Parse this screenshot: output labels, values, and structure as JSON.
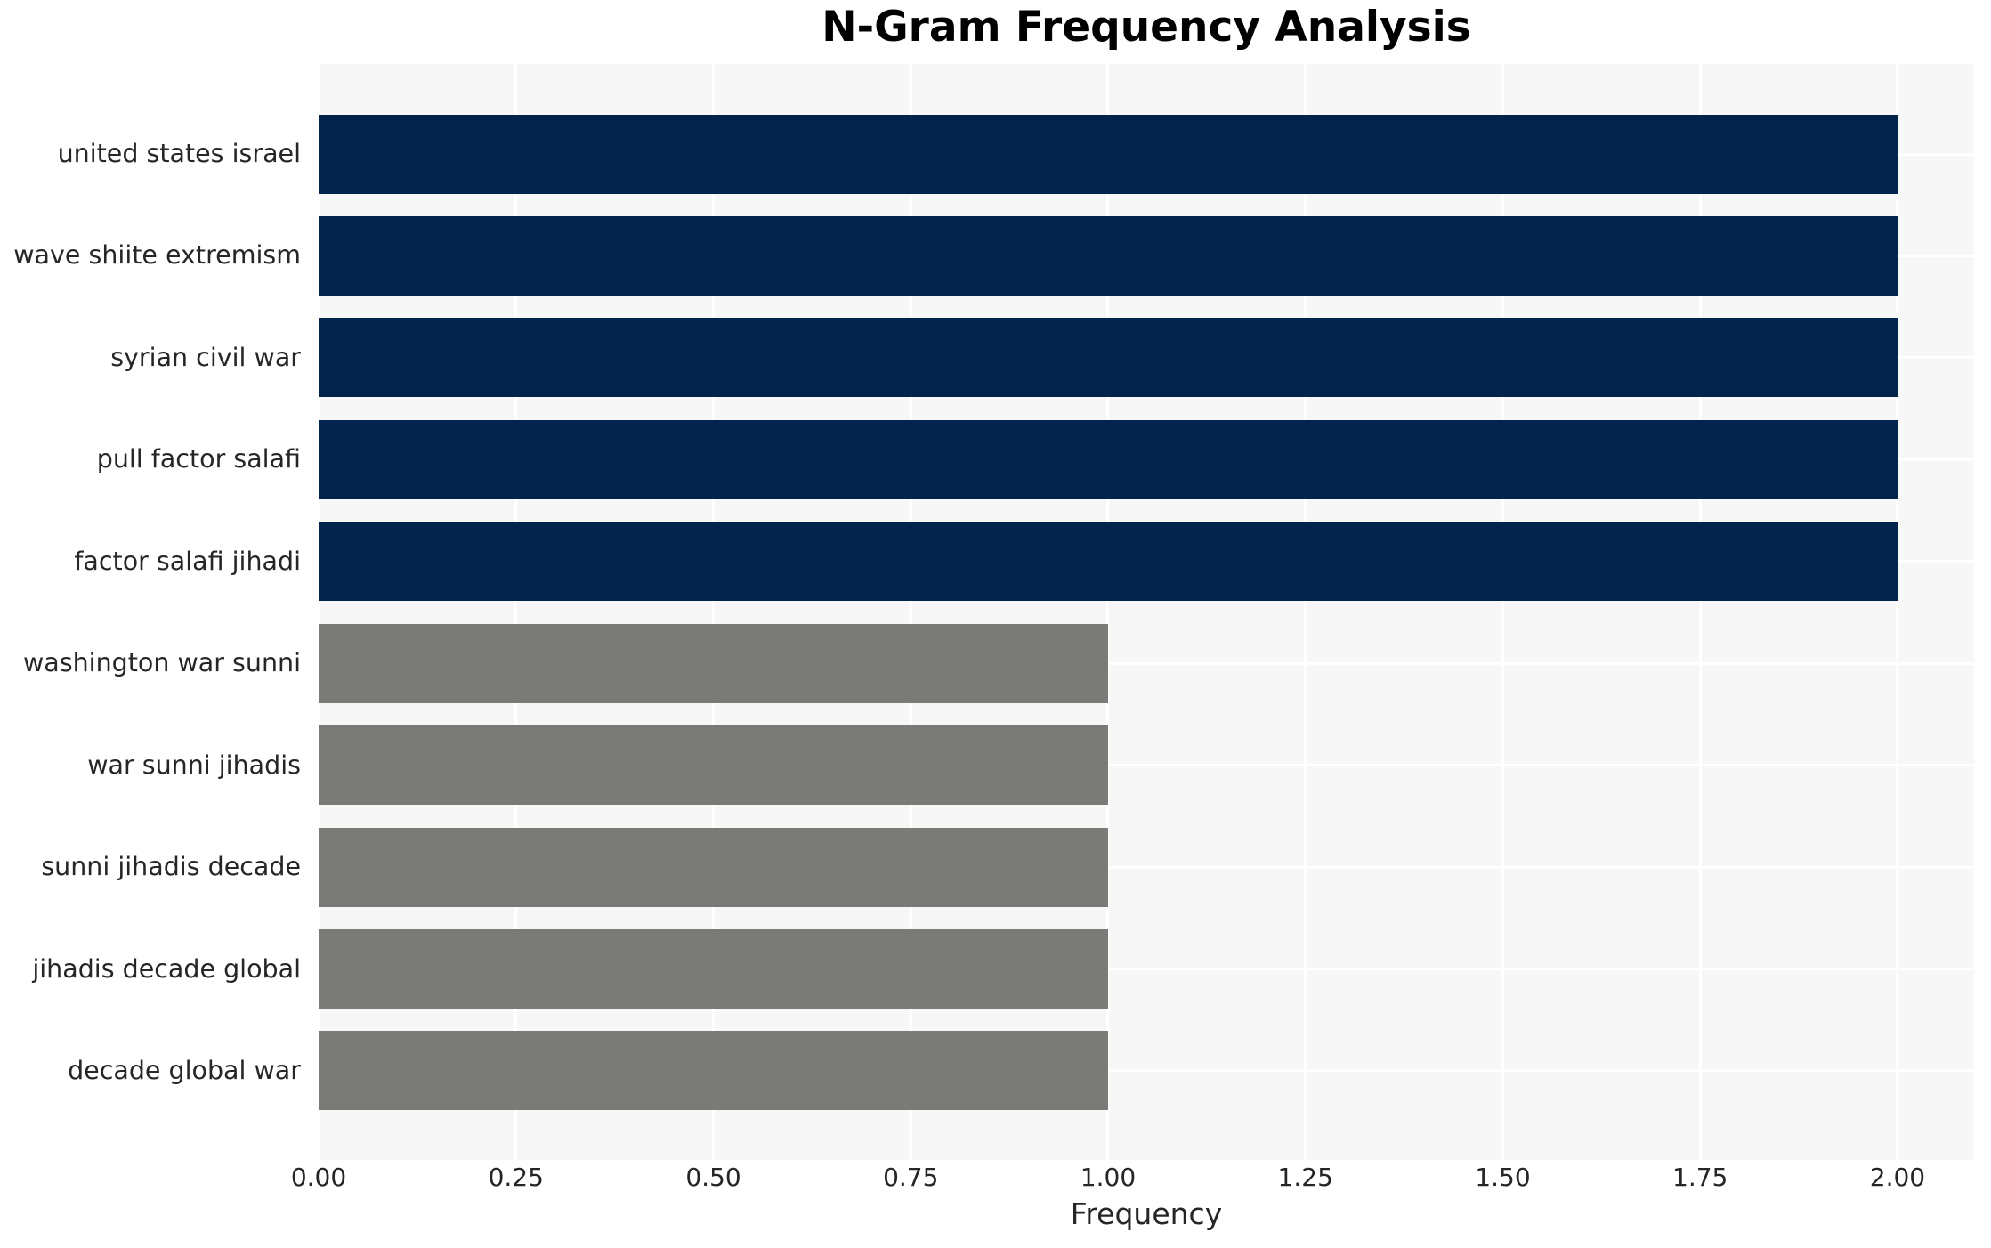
{
  "chart_data": {
    "type": "bar",
    "orientation": "horizontal",
    "title": "N-Gram Frequency Analysis",
    "xlabel": "Frequency",
    "ylabel": "",
    "categories": [
      "united states israel",
      "wave shiite extremism",
      "syrian civil war",
      "pull factor salafi",
      "factor salafi jihadi",
      "washington war sunni",
      "war sunni jihadis",
      "sunni jihadis decade",
      "jihadis decade global",
      "decade global war"
    ],
    "values": [
      2.0,
      2.0,
      2.0,
      2.0,
      2.0,
      1.0,
      1.0,
      1.0,
      1.0,
      1.0
    ],
    "bar_colors": [
      "#02234C",
      "#02234C",
      "#02234C",
      "#02234C",
      "#02234C",
      "#7A7A77",
      "#7A7A77",
      "#7A7A77",
      "#7A7A77",
      "#7A7A77"
    ],
    "xlim": [
      0,
      2.097
    ],
    "xticks": [
      0,
      0.25,
      0.5,
      0.75,
      1.0,
      1.25,
      1.5,
      1.75,
      2.0
    ],
    "xtick_labels": [
      "0.00",
      "0.25",
      "0.50",
      "0.75",
      "1.00",
      "1.25",
      "1.50",
      "1.75",
      "2.00"
    ],
    "grid": {
      "show": true,
      "color": "#ffffff",
      "axes": "both"
    },
    "legend": {
      "show": false
    }
  },
  "colors": {
    "figure_background": "#ffffff",
    "plot_background": "#f7f7f7",
    "gridline": "#ffffff",
    "bar_high": "#02234C",
    "bar_low": "#7A7A77",
    "tick_text": "#262626",
    "title_text": "#000000"
  }
}
